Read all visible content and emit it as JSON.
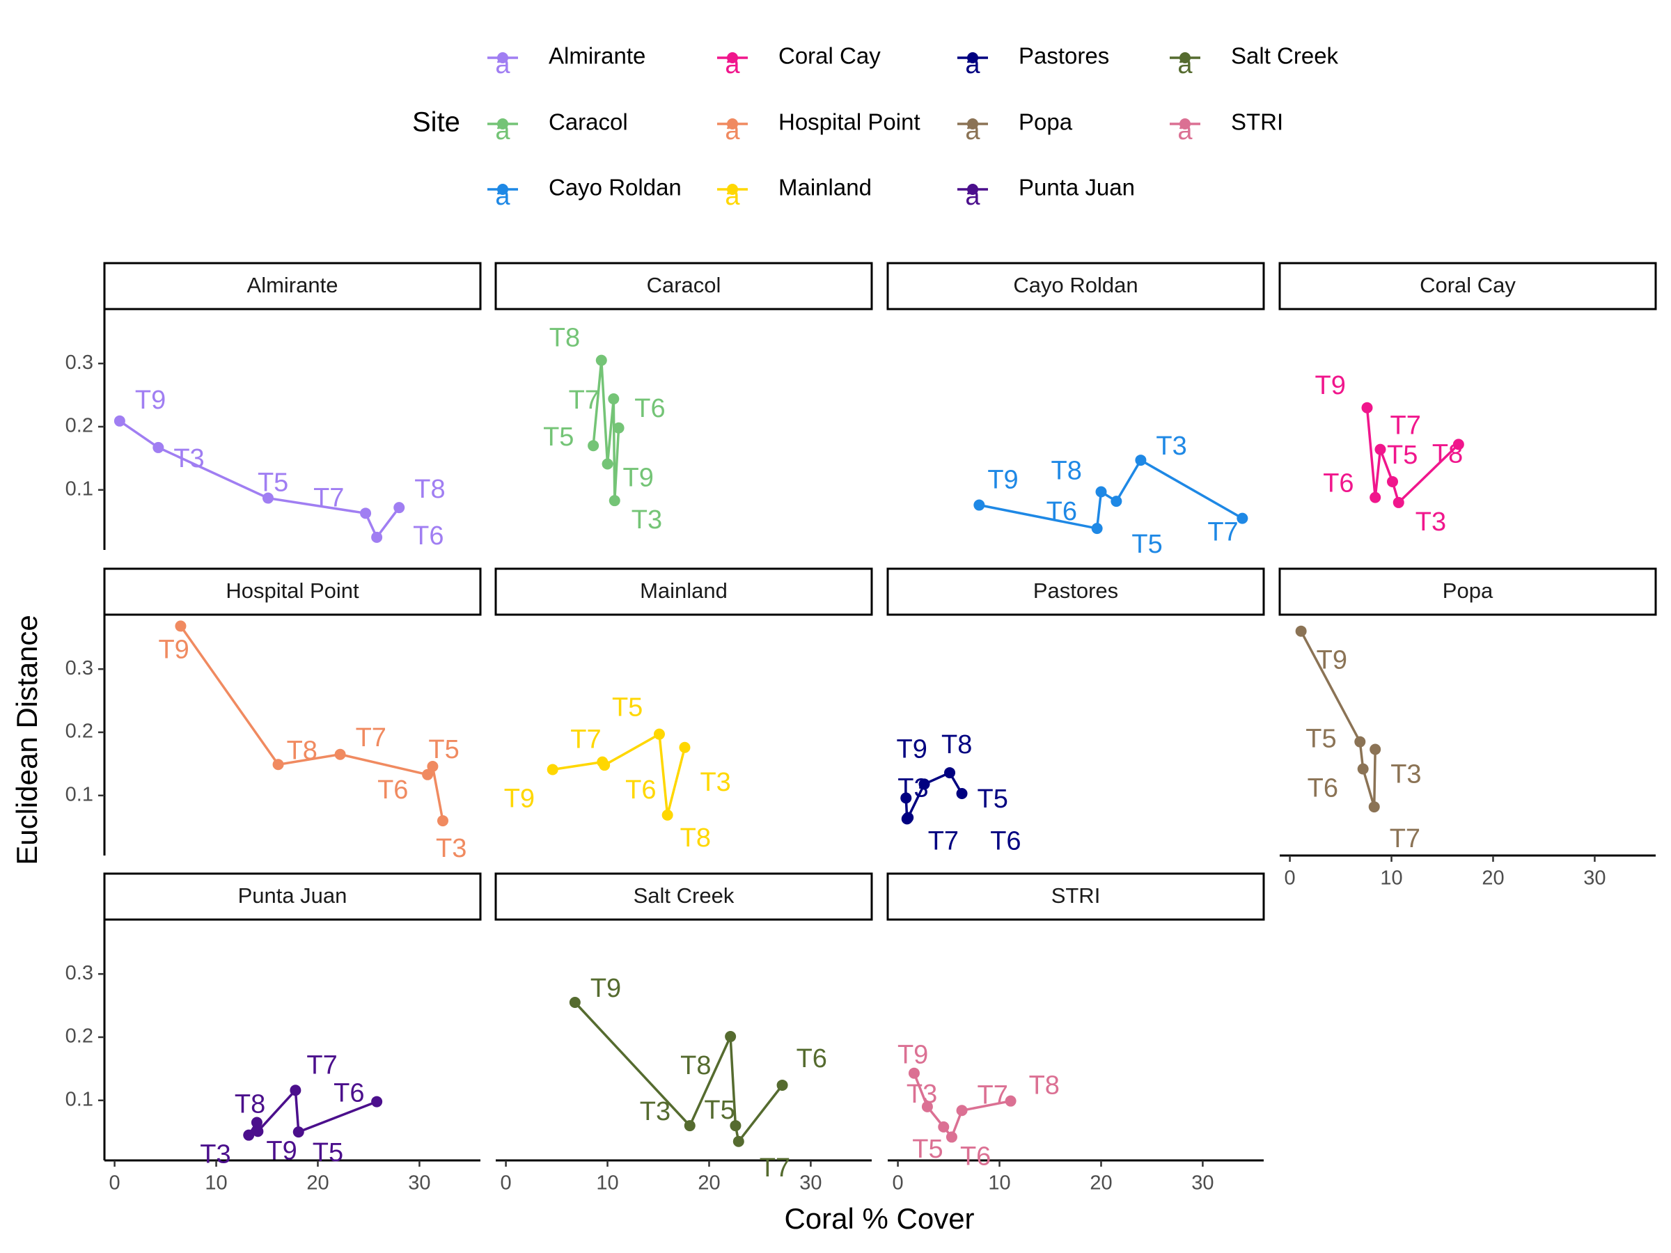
{
  "chart_data": {
    "type": "line",
    "xlabel": "Coral % Cover",
    "ylabel": "Euclidean Distance",
    "legend": {
      "title": "Site",
      "placement": "top",
      "key_glyph_text": "a"
    },
    "xlim": [
      -1,
      36
    ],
    "ylim": [
      0.005,
      0.385
    ],
    "x_ticks": [
      0,
      10,
      20,
      30
    ],
    "y_ticks": [
      0.1,
      0.2,
      0.3
    ],
    "y_tick_labels": [
      "0.1",
      "0.2",
      "0.3"
    ],
    "grid": false,
    "facet_layout": "4 columns x 3 rows",
    "series": [
      {
        "name": "Almirante",
        "color": "#A07EF2",
        "points": [
          {
            "label": "T9",
            "x": 0.5,
            "y": 0.209
          },
          {
            "label": "T3",
            "x": 4.3,
            "y": 0.167
          },
          {
            "label": "T5",
            "x": 15.1,
            "y": 0.087
          },
          {
            "label": "T7",
            "x": 24.7,
            "y": 0.063
          },
          {
            "label": "T6",
            "x": 25.8,
            "y": 0.025
          },
          {
            "label": "T8",
            "x": 28.0,
            "y": 0.072
          }
        ]
      },
      {
        "name": "Caracol",
        "color": "#74C476",
        "points": [
          {
            "label": "T5",
            "x": 8.6,
            "y": 0.17
          },
          {
            "label": "T8",
            "x": 9.4,
            "y": 0.305
          },
          {
            "label": "T9",
            "x": 10.0,
            "y": 0.141
          },
          {
            "label": "T6",
            "x": 10.6,
            "y": 0.244
          },
          {
            "label": "T3",
            "x": 10.7,
            "y": 0.083
          },
          {
            "label": "T7",
            "x": 11.1,
            "y": 0.198
          }
        ]
      },
      {
        "name": "Cayo Roldan",
        "color": "#1E88E5",
        "points": [
          {
            "label": "T9",
            "x": 8.0,
            "y": 0.076
          },
          {
            "label": "T6",
            "x": 19.6,
            "y": 0.039
          },
          {
            "label": "T8",
            "x": 20.0,
            "y": 0.097
          },
          {
            "label": "T5",
            "x": 21.5,
            "y": 0.082
          },
          {
            "label": "T3",
            "x": 23.9,
            "y": 0.147
          },
          {
            "label": "T7",
            "x": 33.9,
            "y": 0.055
          }
        ]
      },
      {
        "name": "Coral Cay",
        "color": "#F0168C",
        "points": [
          {
            "label": "T9",
            "x": 7.6,
            "y": 0.23
          },
          {
            "label": "T6",
            "x": 8.4,
            "y": 0.088
          },
          {
            "label": "T7",
            "x": 8.9,
            "y": 0.164
          },
          {
            "label": "T5",
            "x": 10.1,
            "y": 0.113
          },
          {
            "label": "T3",
            "x": 10.7,
            "y": 0.08
          },
          {
            "label": "T8",
            "x": 16.6,
            "y": 0.172
          }
        ]
      },
      {
        "name": "Hospital Point",
        "color": "#F08A60",
        "points": [
          {
            "label": "T9",
            "x": 6.5,
            "y": 0.368
          },
          {
            "label": "T8",
            "x": 16.1,
            "y": 0.149
          },
          {
            "label": "T7",
            "x": 22.2,
            "y": 0.165
          },
          {
            "label": "T6",
            "x": 30.8,
            "y": 0.133
          },
          {
            "label": "T5",
            "x": 31.3,
            "y": 0.146
          },
          {
            "label": "T3",
            "x": 32.3,
            "y": 0.06
          }
        ]
      },
      {
        "name": "Mainland",
        "color": "#FFD700",
        "points": [
          {
            "label": "T9",
            "x": 4.6,
            "y": 0.141
          },
          {
            "label": "T7",
            "x": 9.5,
            "y": 0.153
          },
          {
            "label": "T6",
            "x": 9.7,
            "y": 0.148
          },
          {
            "label": "T5",
            "x": 15.1,
            "y": 0.197
          },
          {
            "label": "T8",
            "x": 15.9,
            "y": 0.069
          },
          {
            "label": "T3",
            "x": 17.6,
            "y": 0.176
          }
        ]
      },
      {
        "name": "Pastores",
        "color": "#000080",
        "points": [
          {
            "label": "T3",
            "x": 0.8,
            "y": 0.096
          },
          {
            "label": "T7",
            "x": 0.9,
            "y": 0.063
          },
          {
            "label": "T6",
            "x": 1.0,
            "y": 0.065
          },
          {
            "label": "T9",
            "x": 2.6,
            "y": 0.118
          },
          {
            "label": "T8",
            "x": 5.1,
            "y": 0.136
          },
          {
            "label": "T5",
            "x": 6.3,
            "y": 0.103
          }
        ]
      },
      {
        "name": "Popa",
        "color": "#8B7355",
        "points": [
          {
            "label": "T9",
            "x": 1.1,
            "y": 0.36
          },
          {
            "label": "T5",
            "x": 6.9,
            "y": 0.185
          },
          {
            "label": "T6",
            "x": 7.2,
            "y": 0.142
          },
          {
            "label": "T7",
            "x": 8.3,
            "y": 0.082
          },
          {
            "label": "T3",
            "x": 8.4,
            "y": 0.173
          }
        ]
      },
      {
        "name": "Punta Juan",
        "color": "#4B0F8C",
        "points": [
          {
            "label": "T3",
            "x": 13.2,
            "y": 0.045
          },
          {
            "label": "T8",
            "x": 14.0,
            "y": 0.065
          },
          {
            "label": "T9",
            "x": 14.1,
            "y": 0.051
          },
          {
            "label": "T7",
            "x": 17.8,
            "y": 0.116
          },
          {
            "label": "T5",
            "x": 18.1,
            "y": 0.05
          },
          {
            "label": "T6",
            "x": 25.8,
            "y": 0.098
          }
        ]
      },
      {
        "name": "Salt Creek",
        "color": "#556B2F",
        "points": [
          {
            "label": "T9",
            "x": 6.8,
            "y": 0.255
          },
          {
            "label": "T3",
            "x": 18.1,
            "y": 0.06
          },
          {
            "label": "T8",
            "x": 22.1,
            "y": 0.201
          },
          {
            "label": "T5",
            "x": 22.6,
            "y": 0.06
          },
          {
            "label": "T7",
            "x": 22.9,
            "y": 0.035
          },
          {
            "label": "T6",
            "x": 27.2,
            "y": 0.124
          }
        ]
      },
      {
        "name": "STRI",
        "color": "#DB7093",
        "points": [
          {
            "label": "T9",
            "x": 1.6,
            "y": 0.143
          },
          {
            "label": "T3",
            "x": 2.9,
            "y": 0.09
          },
          {
            "label": "T5",
            "x": 4.5,
            "y": 0.058
          },
          {
            "label": "T6",
            "x": 5.3,
            "y": 0.042
          },
          {
            "label": "T7",
            "x": 6.3,
            "y": 0.084
          },
          {
            "label": "T8",
            "x": 11.1,
            "y": 0.099
          }
        ]
      }
    ]
  }
}
